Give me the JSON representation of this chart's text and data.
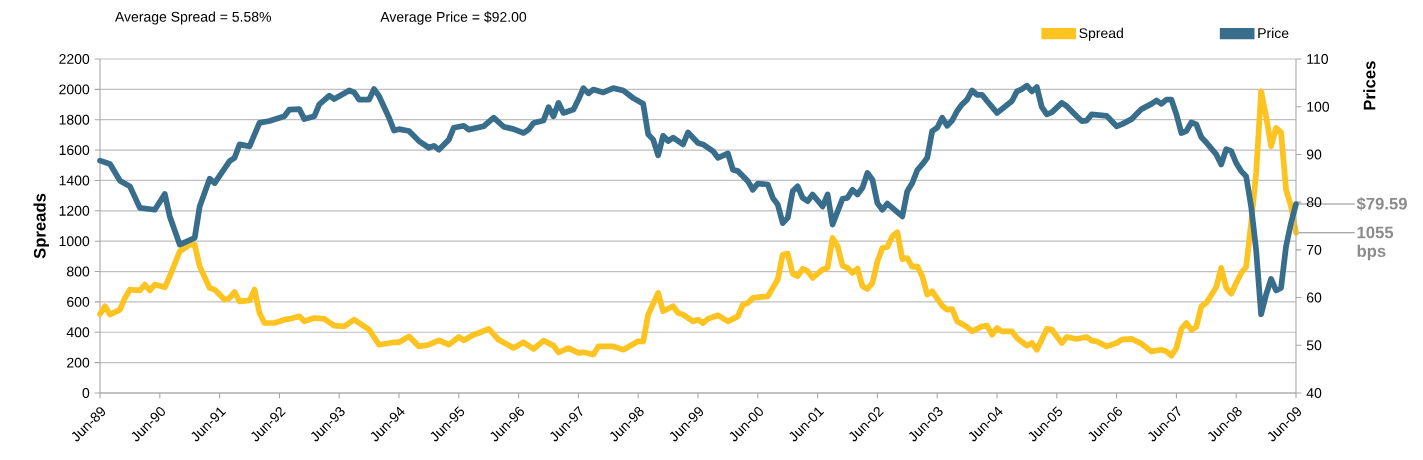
{
  "chart_data": {
    "type": "line",
    "annotations": [
      "Average Spread = 5.58%",
      "Average Price = $92.00",
      "1055 bps",
      "$79.59"
    ],
    "ylabel": "Spreads",
    "y2label": "Prices",
    "xlim": [
      "1989-06",
      "2009-06"
    ],
    "xticks": [
      {
        "value": "1989-06",
        "label": "Jun-89"
      },
      {
        "value": "1990-06",
        "label": "Jun-90"
      },
      {
        "value": "1991-06",
        "label": "Jun-91"
      },
      {
        "value": "1992-06",
        "label": "Jun-92"
      },
      {
        "value": "1993-06",
        "label": "Jun-93"
      },
      {
        "value": "1994-06",
        "label": "Jun-94"
      },
      {
        "value": "1995-06",
        "label": "Jun-95"
      },
      {
        "value": "1996-06",
        "label": "Jun-96"
      },
      {
        "value": "1997-06",
        "label": "Jun-97"
      },
      {
        "value": "1998-06",
        "label": "Jun-98"
      },
      {
        "value": "1999-06",
        "label": "Jun-99"
      },
      {
        "value": "2000-06",
        "label": "Jun-00"
      },
      {
        "value": "2001-06",
        "label": "Jun-01"
      },
      {
        "value": "2002-06",
        "label": "Jun-02"
      },
      {
        "value": "2003-06",
        "label": "Jun-03"
      },
      {
        "value": "2004-06",
        "label": "Jun-04"
      },
      {
        "value": "2005-06",
        "label": "Jun-05"
      },
      {
        "value": "2006-06",
        "label": "Jun-06"
      },
      {
        "value": "2007-06",
        "label": "Jun-07"
      },
      {
        "value": "2008-06",
        "label": "Jun-08"
      },
      {
        "value": "2009-06",
        "label": "Jun-09"
      }
    ],
    "ylim": [
      0,
      2200
    ],
    "yticks": [
      0,
      200,
      400,
      600,
      800,
      1000,
      1200,
      1400,
      1600,
      1800,
      2000,
      2200
    ],
    "y2lim": [
      40,
      110
    ],
    "y2ticks": [
      40,
      50,
      60,
      70,
      80,
      90,
      100,
      110
    ],
    "grid": "y",
    "legend": "top right",
    "line_style": "solid",
    "marker": "none",
    "series": [
      {
        "name": "Spread",
        "color": "#fdc321",
        "x": [
          "1989-06",
          "1989-07",
          "1989-08",
          "1989-10",
          "1989-11",
          "1989-12",
          "1990-02",
          "1990-03",
          "1990-04",
          "1990-05",
          "1990-07",
          "1990-08",
          "1990-10",
          "1990-11",
          "1990-12",
          "1991-01",
          "1991-02",
          "1991-04",
          "1991-05",
          "1991-07",
          "1991-08",
          "1991-09",
          "1991-10",
          "1991-12",
          "1992-01",
          "1992-02",
          "1992-03",
          "1992-05",
          "1992-07",
          "1992-08",
          "1992-10",
          "1992-11",
          "1993-01",
          "1993-03",
          "1993-05",
          "1993-07",
          "1993-09",
          "1993-12",
          "1994-02",
          "1994-05",
          "1994-06",
          "1994-08",
          "1994-10",
          "1994-12",
          "1995-02",
          "1995-04",
          "1995-06",
          "1995-07",
          "1995-09",
          "1995-10",
          "1995-12",
          "1996-02",
          "1996-05",
          "1996-07",
          "1996-09",
          "1996-11",
          "1997-01",
          "1997-02",
          "1997-04",
          "1997-06",
          "1997-07",
          "1997-09",
          "1997-10",
          "1998-01",
          "1998-03",
          "1998-06",
          "1998-07",
          "1998-08",
          "1998-10",
          "1998-11",
          "1999-01",
          "1999-02",
          "1999-03",
          "1999-05",
          "1999-06",
          "1999-07",
          "1999-08",
          "1999-10",
          "1999-12",
          "2000-02",
          "2000-03",
          "2000-04",
          "2000-05",
          "2000-08",
          "2000-09",
          "2000-10",
          "2000-11",
          "2000-12",
          "2001-01",
          "2001-02",
          "2001-03",
          "2001-04",
          "2001-05",
          "2001-07",
          "2001-08",
          "2001-09",
          "2001-10",
          "2001-11",
          "2001-12",
          "2002-01",
          "2002-02",
          "2002-03",
          "2002-04",
          "2002-05",
          "2002-06",
          "2002-07",
          "2002-08",
          "2002-09",
          "2002-10",
          "2002-11",
          "2002-12",
          "2003-01",
          "2003-02",
          "2003-03",
          "2003-04",
          "2003-05",
          "2003-07",
          "2003-08",
          "2003-09",
          "2003-10",
          "2003-12",
          "2004-01",
          "2004-03",
          "2004-04",
          "2004-05",
          "2004-06",
          "2004-07",
          "2004-09",
          "2004-10",
          "2004-12",
          "2005-01",
          "2005-02",
          "2005-04",
          "2005-05",
          "2005-07",
          "2005-08",
          "2005-10",
          "2005-12",
          "2006-01",
          "2006-02",
          "2006-04",
          "2006-06",
          "2006-07",
          "2006-09",
          "2006-11",
          "2007-01",
          "2007-03",
          "2007-04",
          "2007-05",
          "2007-06",
          "2007-07",
          "2007-08",
          "2007-09",
          "2007-10",
          "2007-11",
          "2007-12",
          "2008-02",
          "2008-03",
          "2008-04",
          "2008-05",
          "2008-06",
          "2008-07",
          "2008-08",
          "2008-09",
          "2008-10",
          "2008-11",
          "2008-12",
          "2009-01",
          "2009-02",
          "2009-03",
          "2009-04",
          "2009-05",
          "2009-06"
        ],
        "values": [
          520,
          571,
          516,
          549,
          626,
          681,
          676,
          714,
          676,
          714,
          696,
          769,
          933,
          955,
          977,
          977,
          834,
          692,
          681,
          615,
          626,
          665,
          604,
          610,
          681,
          527,
          461,
          461,
          483,
          488,
          505,
          472,
          494,
          488,
          444,
          439,
          483,
          417,
          318,
          334,
          334,
          373,
          307,
          318,
          347,
          318,
          369,
          347,
          384,
          395,
          422,
          351,
          296,
          334,
          290,
          345,
          312,
          268,
          296,
          264,
          268,
          253,
          307,
          307,
          285,
          340,
          340,
          516,
          659,
          538,
          571,
          527,
          516,
          472,
          483,
          461,
          488,
          512,
          472,
          505,
          582,
          593,
          626,
          637,
          692,
          747,
          911,
          918,
          786,
          769,
          817,
          802,
          758,
          813,
          824,
          1021,
          966,
          839,
          824,
          791,
          819,
          703,
          685,
          725,
          867,
          955,
          962,
          1032,
          1058,
          882,
          889,
          830,
          834,
          769,
          648,
          670,
          575,
          549,
          553,
          472,
          435,
          406,
          439,
          444,
          384,
          428,
          406,
          406,
          362,
          312,
          329,
          285,
          422,
          417,
          329,
          369,
          356,
          369,
          345,
          340,
          307,
          329,
          351,
          356,
          325,
          274,
          285,
          274,
          246,
          296,
          422,
          461,
          417,
          435,
          571,
          593,
          698,
          824,
          692,
          654,
          725,
          791,
          830,
          1120,
          1449,
          1987,
          1823,
          1625,
          1746,
          1717,
          1340,
          1230,
          1055
        ]
      },
      {
        "name": "Price",
        "color": "#386e8b",
        "axis": "y2",
        "x": [
          "1989-06",
          "1989-08",
          "1989-10",
          "1989-12",
          "1990-02",
          "1990-05",
          "1990-07",
          "1990-08",
          "1990-10",
          "1991-01",
          "1991-02",
          "1991-04",
          "1991-05",
          "1991-08",
          "1991-09",
          "1991-10",
          "1991-12",
          "1992-02",
          "1992-04",
          "1992-07",
          "1992-08",
          "1992-10",
          "1992-11",
          "1993-01",
          "1993-02",
          "1993-04",
          "1993-05",
          "1993-08",
          "1993-09",
          "1993-10",
          "1993-12",
          "1994-01",
          "1994-02",
          "1994-04",
          "1994-05",
          "1994-06",
          "1994-08",
          "1994-10",
          "1994-12",
          "1995-01",
          "1995-02",
          "1995-04",
          "1995-05",
          "1995-07",
          "1995-08",
          "1995-11",
          "1996-01",
          "1996-03",
          "1996-05",
          "1996-07",
          "1996-08",
          "1996-09",
          "1996-11",
          "1996-12",
          "1997-01",
          "1997-02",
          "1997-03",
          "1997-05",
          "1997-06",
          "1997-07",
          "1997-08",
          "1997-09",
          "1997-11",
          "1998-01",
          "1998-03",
          "1998-05",
          "1998-07",
          "1998-08",
          "1998-09",
          "1998-10",
          "1998-11",
          "1998-12",
          "1999-01",
          "1999-03",
          "1999-04",
          "1999-06",
          "1999-07",
          "1999-09",
          "1999-10",
          "1999-12",
          "2000-01",
          "2000-02",
          "2000-04",
          "2000-05",
          "2000-06",
          "2000-08",
          "2000-09",
          "2000-10",
          "2000-11",
          "2000-12",
          "2001-01",
          "2001-02",
          "2001-03",
          "2001-04",
          "2001-05",
          "2001-07",
          "2001-08",
          "2001-09",
          "2001-11",
          "2001-12",
          "2002-01",
          "2002-02",
          "2002-03",
          "2002-04",
          "2002-05",
          "2002-06",
          "2002-07",
          "2002-08",
          "2002-11",
          "2002-12",
          "2003-01",
          "2003-02",
          "2003-03",
          "2003-04",
          "2003-05",
          "2003-06",
          "2003-07",
          "2003-08",
          "2003-09",
          "2003-10",
          "2003-11",
          "2003-12",
          "2004-01",
          "2004-02",
          "2004-03",
          "2004-04",
          "2004-06",
          "2004-07",
          "2004-09",
          "2004-10",
          "2004-11",
          "2004-12",
          "2005-01",
          "2005-02",
          "2005-03",
          "2005-04",
          "2005-05",
          "2005-07",
          "2005-08",
          "2005-10",
          "2005-11",
          "2005-12",
          "2006-01",
          "2006-04",
          "2006-06",
          "2006-07",
          "2006-09",
          "2006-11",
          "2007-01",
          "2007-02",
          "2007-03",
          "2007-04",
          "2007-05",
          "2007-06",
          "2007-07",
          "2007-08",
          "2007-09",
          "2007-10",
          "2007-11",
          "2007-12",
          "2008-02",
          "2008-03",
          "2008-04",
          "2008-05",
          "2008-06",
          "2008-07",
          "2008-08",
          "2008-09",
          "2008-10",
          "2008-11",
          "2008-12",
          "2009-01",
          "2009-02",
          "2009-03",
          "2009-04",
          "2009-05",
          "2009-06"
        ],
        "values": [
          88.7,
          88.0,
          84.5,
          83.3,
          78.8,
          78.4,
          81.7,
          77.0,
          71.1,
          72.5,
          79.1,
          84.9,
          84.0,
          88.6,
          89.3,
          92.1,
          91.7,
          96.6,
          97.0,
          98.0,
          99.4,
          99.5,
          97.4,
          98.0,
          100.5,
          102.3,
          101.6,
          103.4,
          103.0,
          101.5,
          101.5,
          103.7,
          102.2,
          97.7,
          95.0,
          95.3,
          94.9,
          92.8,
          91.4,
          91.8,
          91.0,
          93.1,
          95.6,
          96.0,
          95.2,
          95.9,
          97.7,
          95.8,
          95.3,
          94.5,
          95.2,
          96.6,
          97.1,
          99.9,
          98.0,
          100.8,
          98.7,
          99.4,
          101.5,
          103.9,
          102.8,
          103.6,
          103.0,
          103.9,
          103.4,
          101.8,
          100.6,
          94.2,
          93.1,
          89.8,
          93.9,
          92.8,
          93.5,
          92.1,
          94.6,
          92.4,
          92.1,
          90.7,
          89.3,
          90.2,
          86.8,
          86.5,
          84.4,
          82.6,
          83.9,
          83.7,
          80.9,
          79.5,
          75.6,
          76.7,
          82.3,
          83.3,
          80.9,
          80.2,
          81.6,
          79.1,
          81.6,
          75.3,
          80.7,
          80.9,
          82.6,
          81.6,
          83.0,
          86.1,
          84.7,
          79.8,
          78.4,
          79.7,
          77.0,
          82.3,
          84.0,
          86.7,
          87.9,
          89.3,
          94.9,
          95.6,
          97.7,
          96.0,
          97.1,
          99.1,
          100.5,
          101.5,
          103.4,
          102.5,
          102.5,
          101.2,
          98.7,
          99.5,
          101.2,
          103.2,
          103.7,
          104.4,
          103.2,
          104.1,
          99.9,
          98.4,
          98.8,
          100.8,
          100.1,
          98.0,
          97.0,
          97.1,
          98.4,
          98.1,
          95.9,
          96.3,
          97.4,
          99.5,
          100.6,
          101.3,
          100.6,
          101.5,
          101.5,
          98.4,
          94.5,
          94.9,
          96.7,
          96.3,
          93.6,
          92.5,
          90.0,
          87.9,
          91.1,
          90.7,
          88.2,
          86.5,
          85.4,
          79.1,
          70.0,
          56.5,
          60.6,
          63.9,
          61.5,
          62.0,
          70.7,
          75.6,
          79.59
        ]
      }
    ]
  }
}
